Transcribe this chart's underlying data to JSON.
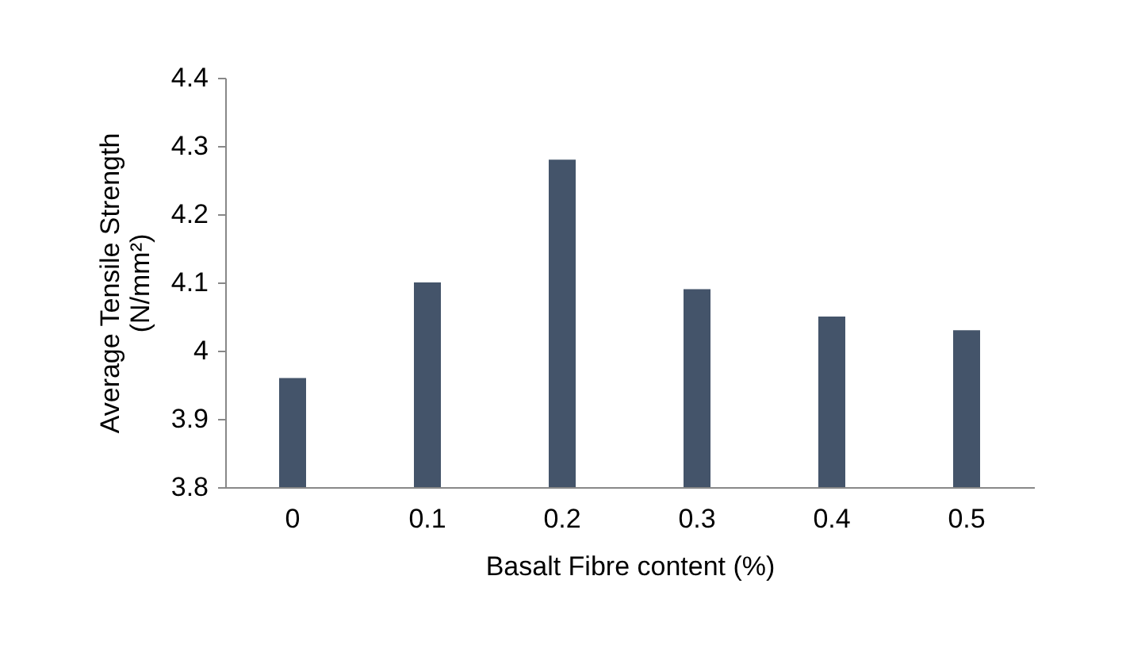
{
  "chart_data": {
    "type": "bar",
    "xlabel": "Basalt Fibre content (%)",
    "ylabel": "Average Tensile Strength (N/mm²)",
    "categories": [
      "0",
      "0.1",
      "0.2",
      "0.3",
      "0.4",
      "0.5"
    ],
    "values": [
      3.96,
      4.1,
      4.28,
      4.09,
      4.05,
      4.03
    ],
    "color": "#44546a",
    "ylim": [
      3.8,
      4.4
    ],
    "yticks": [
      3.8,
      3.9,
      4,
      4.1,
      4.2,
      4.3,
      4.4
    ],
    "grid": false
  }
}
